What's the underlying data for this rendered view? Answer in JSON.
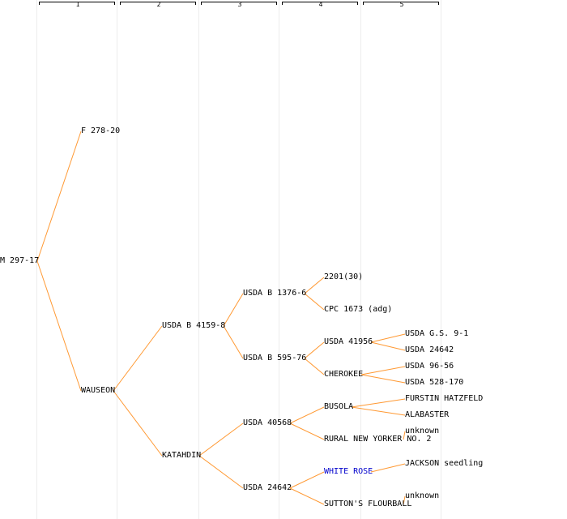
{
  "generations": [
    "1",
    "2",
    "3",
    "4",
    "5"
  ],
  "colors": {
    "line": "#ff9933",
    "text": "#000000",
    "link": "#0000cc"
  },
  "tree": {
    "label": "M 297-17",
    "children": [
      {
        "label": "F 278-20",
        "children": []
      },
      {
        "label": "WAUSEON",
        "children": [
          {
            "label": "USDA B 4159-8",
            "children": [
              {
                "label": "USDA B 1376-6",
                "children": [
                  {
                    "label": "2201(30)",
                    "children": []
                  },
                  {
                    "label": "CPC 1673 (adg)",
                    "children": []
                  }
                ]
              },
              {
                "label": "USDA B 595-76",
                "children": [
                  {
                    "label": "USDA 41956",
                    "children": [
                      {
                        "label": "USDA G.S. 9-1",
                        "children": []
                      },
                      {
                        "label": "USDA 24642",
                        "children": []
                      }
                    ]
                  },
                  {
                    "label": "CHEROKEE",
                    "children": [
                      {
                        "label": "USDA 96-56",
                        "children": []
                      },
                      {
                        "label": "USDA 528-170",
                        "children": []
                      }
                    ]
                  }
                ]
              }
            ]
          },
          {
            "label": "KATAHDIN",
            "children": [
              {
                "label": "USDA 40568",
                "children": [
                  {
                    "label": "BUSOLA",
                    "children": [
                      {
                        "label": "FURSTIN HATZFELD",
                        "children": []
                      },
                      {
                        "label": "ALABASTER",
                        "children": []
                      }
                    ]
                  },
                  {
                    "label": "RURAL NEW YORKER NO. 2",
                    "children": [
                      {
                        "label": "unknown",
                        "children": []
                      }
                    ]
                  }
                ]
              },
              {
                "label": "USDA 24642",
                "children": [
                  {
                    "label": "WHITE ROSE",
                    "link": true,
                    "children": [
                      {
                        "label": "JACKSON seedling",
                        "children": []
                      }
                    ]
                  },
                  {
                    "label": "SUTTON'S FLOURBALL",
                    "children": [
                      {
                        "label": "unknown",
                        "children": []
                      }
                    ]
                  }
                ]
              }
            ]
          }
        ]
      }
    ]
  }
}
